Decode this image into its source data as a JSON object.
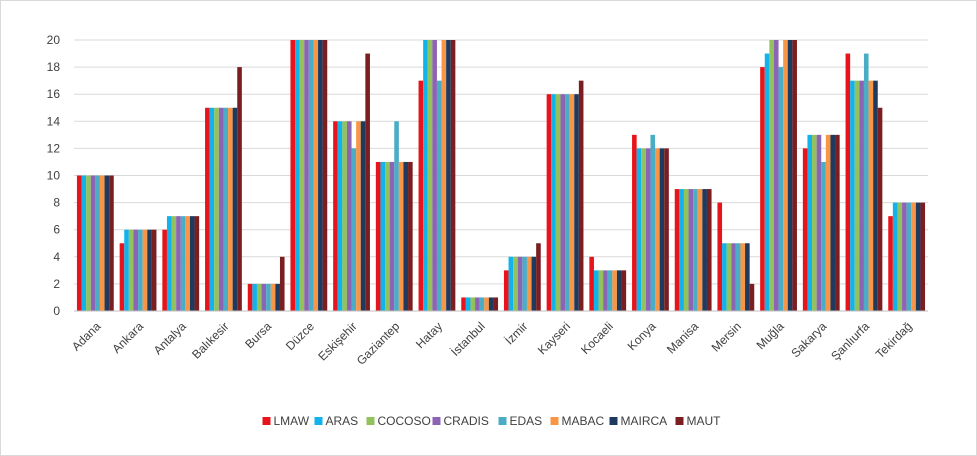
{
  "chart_data": {
    "type": "bar",
    "title": "",
    "xlabel": "",
    "ylabel": "",
    "ylim": [
      0,
      20
    ],
    "yticks": [
      0,
      2,
      4,
      6,
      8,
      10,
      12,
      14,
      16,
      18,
      20
    ],
    "grid": "horizontal",
    "legend_position": "bottom",
    "categories": [
      "Adana",
      "Ankara",
      "Antalya",
      "Balıkesir",
      "Bursa",
      "Düzce",
      "Eskişehir",
      "Gaziantep",
      "Hatay",
      "İstanbul",
      "İzmir",
      "Kayseri",
      "Kocaeli",
      "Konya",
      "Manisa",
      "Mersin",
      "Muğla",
      "Sakarya",
      "Şanlıurfa",
      "Tekirdağ"
    ],
    "series": [
      {
        "name": "LMAW",
        "color": "#e8141b",
        "values": [
          10,
          5,
          6,
          15,
          2,
          20,
          14,
          11,
          17,
          1,
          3,
          16,
          4,
          13,
          9,
          8,
          18,
          12,
          19,
          7
        ]
      },
      {
        "name": "ARAS",
        "color": "#12b3ea",
        "values": [
          10,
          6,
          7,
          15,
          2,
          20,
          14,
          11,
          20,
          1,
          4,
          16,
          3,
          12,
          9,
          5,
          19,
          13,
          17,
          8
        ]
      },
      {
        "name": "COCOSO",
        "color": "#93c15c",
        "values": [
          10,
          6,
          7,
          15,
          2,
          20,
          14,
          11,
          20,
          1,
          4,
          16,
          3,
          12,
          9,
          5,
          20,
          13,
          17,
          8
        ]
      },
      {
        "name": "CRADIS",
        "color": "#8c64b4",
        "values": [
          10,
          6,
          7,
          15,
          2,
          20,
          14,
          11,
          20,
          1,
          4,
          16,
          3,
          12,
          9,
          5,
          20,
          13,
          17,
          8
        ]
      },
      {
        "name": "EDAS",
        "color": "#4bacc6",
        "values": [
          10,
          6,
          7,
          15,
          2,
          20,
          12,
          14,
          17,
          1,
          4,
          16,
          3,
          13,
          9,
          5,
          18,
          11,
          19,
          8
        ]
      },
      {
        "name": "MABAC",
        "color": "#f79646",
        "values": [
          10,
          6,
          7,
          15,
          2,
          20,
          14,
          11,
          20,
          1,
          4,
          16,
          3,
          12,
          9,
          5,
          20,
          13,
          17,
          8
        ]
      },
      {
        "name": "MAIRCA",
        "color": "#1f3a5f",
        "values": [
          10,
          6,
          7,
          15,
          2,
          20,
          14,
          11,
          20,
          1,
          4,
          16,
          3,
          12,
          9,
          5,
          20,
          13,
          17,
          8
        ]
      },
      {
        "name": "MAUT",
        "color": "#7b1e22",
        "values": [
          10,
          6,
          7,
          18,
          4,
          20,
          19,
          11,
          20,
          1,
          5,
          17,
          3,
          12,
          9,
          2,
          20,
          13,
          15,
          8
        ]
      }
    ]
  }
}
